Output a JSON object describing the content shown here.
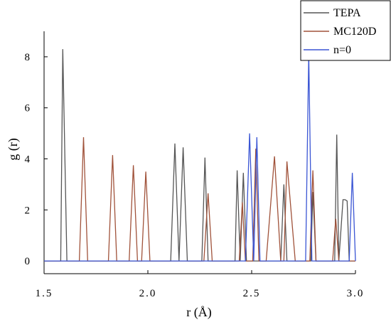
{
  "chart_data": {
    "type": "line",
    "title": "",
    "xlabel": "r (Å)",
    "ylabel": "g (r)",
    "xlim": [
      1.5,
      3.0
    ],
    "ylim": [
      -0.5,
      9.0
    ],
    "xticks": [
      1.5,
      2.0,
      2.5,
      3.0
    ],
    "xtick_labels": [
      "1.5",
      "2.0",
      "2.5",
      "3.0"
    ],
    "yticks": [
      0,
      2,
      4,
      6,
      8
    ],
    "ytick_labels": [
      "0",
      "2",
      "4",
      "6",
      "8"
    ],
    "grid": false,
    "legend_position": "top-right",
    "series": [
      {
        "name": "TEPA",
        "color": "#555555",
        "x": [
          1.5,
          1.58,
          1.59,
          1.61,
          2.11,
          2.13,
          2.15,
          2.17,
          2.19,
          2.26,
          2.275,
          2.29,
          2.42,
          2.43,
          2.445,
          2.46,
          2.475,
          2.49,
          2.64,
          2.655,
          2.67,
          2.785,
          2.795,
          2.81,
          2.9,
          2.91,
          2.92,
          2.94,
          2.95,
          2.96,
          2.97,
          3.0
        ],
        "y": [
          0,
          0,
          8.3,
          0,
          0,
          4.6,
          0,
          4.45,
          0,
          0,
          4.05,
          0,
          0,
          3.55,
          0,
          3.45,
          0,
          0,
          0,
          3.0,
          0,
          0,
          2.7,
          0,
          0,
          4.95,
          0,
          2.4,
          2.4,
          2.35,
          0,
          0
        ]
      },
      {
        "name": "MC120D",
        "color": "#a0523a",
        "x": [
          1.5,
          1.67,
          1.69,
          1.71,
          1.81,
          1.83,
          1.85,
          1.91,
          1.93,
          1.95,
          1.97,
          1.99,
          2.01,
          2.27,
          2.29,
          2.31,
          2.44,
          2.455,
          2.47,
          2.505,
          2.52,
          2.535,
          2.57,
          2.61,
          2.64,
          2.655,
          2.67,
          2.71,
          2.78,
          2.795,
          2.81,
          2.89,
          2.905,
          2.92,
          3.0
        ],
        "y": [
          0,
          0,
          4.85,
          0,
          0,
          4.15,
          0,
          0,
          3.75,
          0,
          0,
          3.5,
          0,
          0,
          2.65,
          0,
          0,
          2.3,
          0,
          0,
          4.4,
          0,
          0,
          4.1,
          0,
          0,
          3.9,
          0,
          0,
          3.55,
          0,
          0,
          1.65,
          0,
          0
        ]
      },
      {
        "name": "n=0",
        "color": "#3a55d4",
        "x": [
          1.5,
          2.47,
          2.49,
          2.51,
          2.525,
          2.54,
          2.76,
          2.775,
          2.79,
          2.97,
          2.985,
          3.0
        ],
        "y": [
          0,
          0,
          5.0,
          0,
          4.85,
          0,
          0,
          8.1,
          0,
          0,
          3.45,
          0
        ]
      }
    ]
  }
}
